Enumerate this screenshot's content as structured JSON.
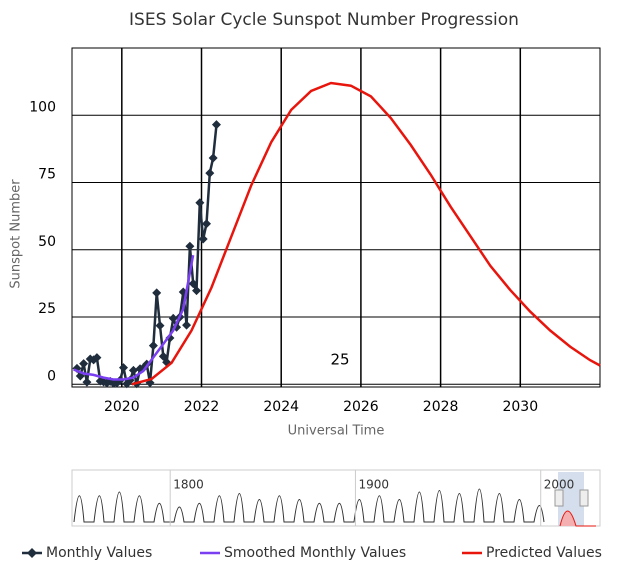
{
  "chart_data": {
    "type": "line",
    "title": "ISES Solar Cycle Sunspot Number Progression",
    "xlabel": "Universal Time",
    "ylabel": "Sunspot Number",
    "annotation": "25",
    "xlim": [
      2018.75,
      2032
    ],
    "ylim": [
      -1,
      125
    ],
    "xticks": [
      2020,
      2022,
      2024,
      2026,
      2028,
      2030
    ],
    "yticks": [
      0,
      25,
      50,
      75,
      100
    ],
    "grid": true,
    "series": [
      {
        "name": "Monthly Values",
        "color": "#1f2d3d",
        "marker": "diamond",
        "x": [
          2018.875,
          2018.958,
          2019.042,
          2019.125,
          2019.208,
          2019.292,
          2019.375,
          2019.458,
          2019.542,
          2019.625,
          2019.708,
          2019.792,
          2019.875,
          2019.958,
          2020.042,
          2020.125,
          2020.208,
          2020.292,
          2020.375,
          2020.458,
          2020.542,
          2020.625,
          2020.708,
          2020.792,
          2020.875,
          2020.958,
          2021.042,
          2021.125,
          2021.208,
          2021.292,
          2021.375,
          2021.458,
          2021.542,
          2021.625,
          2021.708,
          2021.792,
          2021.875,
          2021.958,
          2022.042,
          2022.125,
          2022.208,
          2022.292,
          2022.375
        ],
        "values": [
          5.9,
          3.1,
          7.7,
          0.8,
          9.4,
          9.1,
          9.9,
          1.2,
          0.9,
          0.5,
          1.1,
          0.4,
          0.5,
          1.5,
          6.2,
          0.2,
          1.5,
          5.2,
          0.2,
          5.8,
          6.1,
          7.5,
          0.6,
          14.4,
          34.0,
          21.8,
          10.4,
          8.2,
          17.2,
          24.5,
          21.2,
          25.0,
          34.3,
          22.0,
          51.3,
          37.4,
          34.8,
          67.5,
          54.0,
          59.7,
          78.5,
          84.1,
          96.5
        ]
      },
      {
        "name": "Smoothed Monthly Values",
        "color": "#7b3ff2",
        "x": [
          2018.79,
          2019.04,
          2019.29,
          2019.54,
          2019.79,
          2020.04,
          2020.29,
          2020.54,
          2020.79,
          2021.04,
          2021.29,
          2021.54,
          2021.79
        ],
        "values": [
          5.5,
          4,
          3.5,
          2.5,
          1.8,
          1.8,
          2.5,
          5,
          10,
          15,
          20,
          28,
          48
        ]
      },
      {
        "name": "Predicted Values",
        "color": "#e8150d",
        "x": [
          2020.25,
          2020.75,
          2021.25,
          2021.75,
          2022.25,
          2022.75,
          2023.25,
          2023.75,
          2024.25,
          2024.75,
          2025.25,
          2025.75,
          2026.25,
          2026.75,
          2027.25,
          2027.75,
          2028.25,
          2028.75,
          2029.25,
          2029.75,
          2030.25,
          2030.75,
          2031.25,
          2031.75,
          2032
        ],
        "values": [
          0,
          2,
          8,
          20,
          36,
          55,
          74,
          90,
          102,
          109,
          112,
          111,
          107,
          99,
          89,
          78,
          66,
          55,
          44,
          35,
          27,
          20,
          14,
          9,
          7
        ]
      }
    ],
    "navigator": {
      "xlim": [
        1747,
        2032
      ],
      "xticks": [
        1800,
        1900,
        2000
      ]
    }
  }
}
